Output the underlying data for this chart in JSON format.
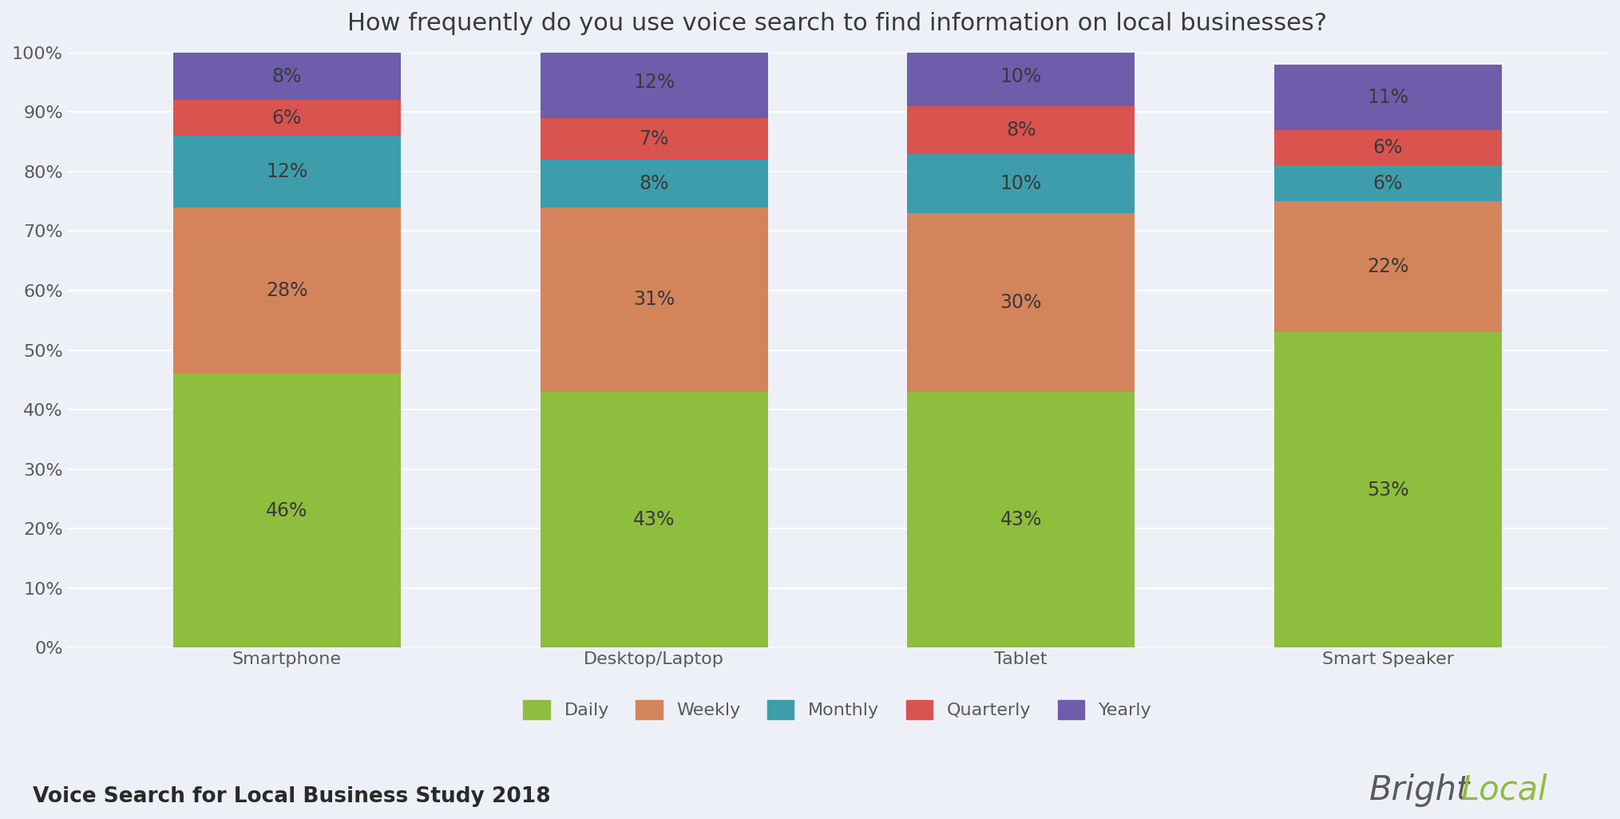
{
  "title": "How frequently do you use voice search to find information on local businesses?",
  "categories": [
    "Smartphone",
    "Desktop/Laptop",
    "Tablet",
    "Smart Speaker"
  ],
  "series": {
    "Daily": [
      46,
      43,
      43,
      53
    ],
    "Weekly": [
      28,
      31,
      30,
      22
    ],
    "Monthly": [
      12,
      8,
      10,
      6
    ],
    "Quarterly": [
      6,
      7,
      8,
      6
    ],
    "Yearly": [
      8,
      12,
      10,
      11
    ]
  },
  "colors": {
    "Daily": "#8fbd3e",
    "Weekly": "#d4845a",
    "Monthly": "#3e9daa",
    "Quarterly": "#d9534f",
    "Yearly": "#6d5dab"
  },
  "yticks": [
    0,
    10,
    20,
    30,
    40,
    50,
    60,
    70,
    80,
    90,
    100
  ],
  "ytick_labels": [
    "0%",
    "10%",
    "20%",
    "30%",
    "40%",
    "50%",
    "60%",
    "70%",
    "80%",
    "90%",
    "100%"
  ],
  "background_color": "#edf1f7",
  "title_fontsize": 22,
  "label_fontsize": 17,
  "tick_fontsize": 16,
  "legend_fontsize": 16,
  "footer_text": "Voice Search for Local Business Study 2018",
  "footer_fontsize": 19,
  "bar_width": 0.62
}
